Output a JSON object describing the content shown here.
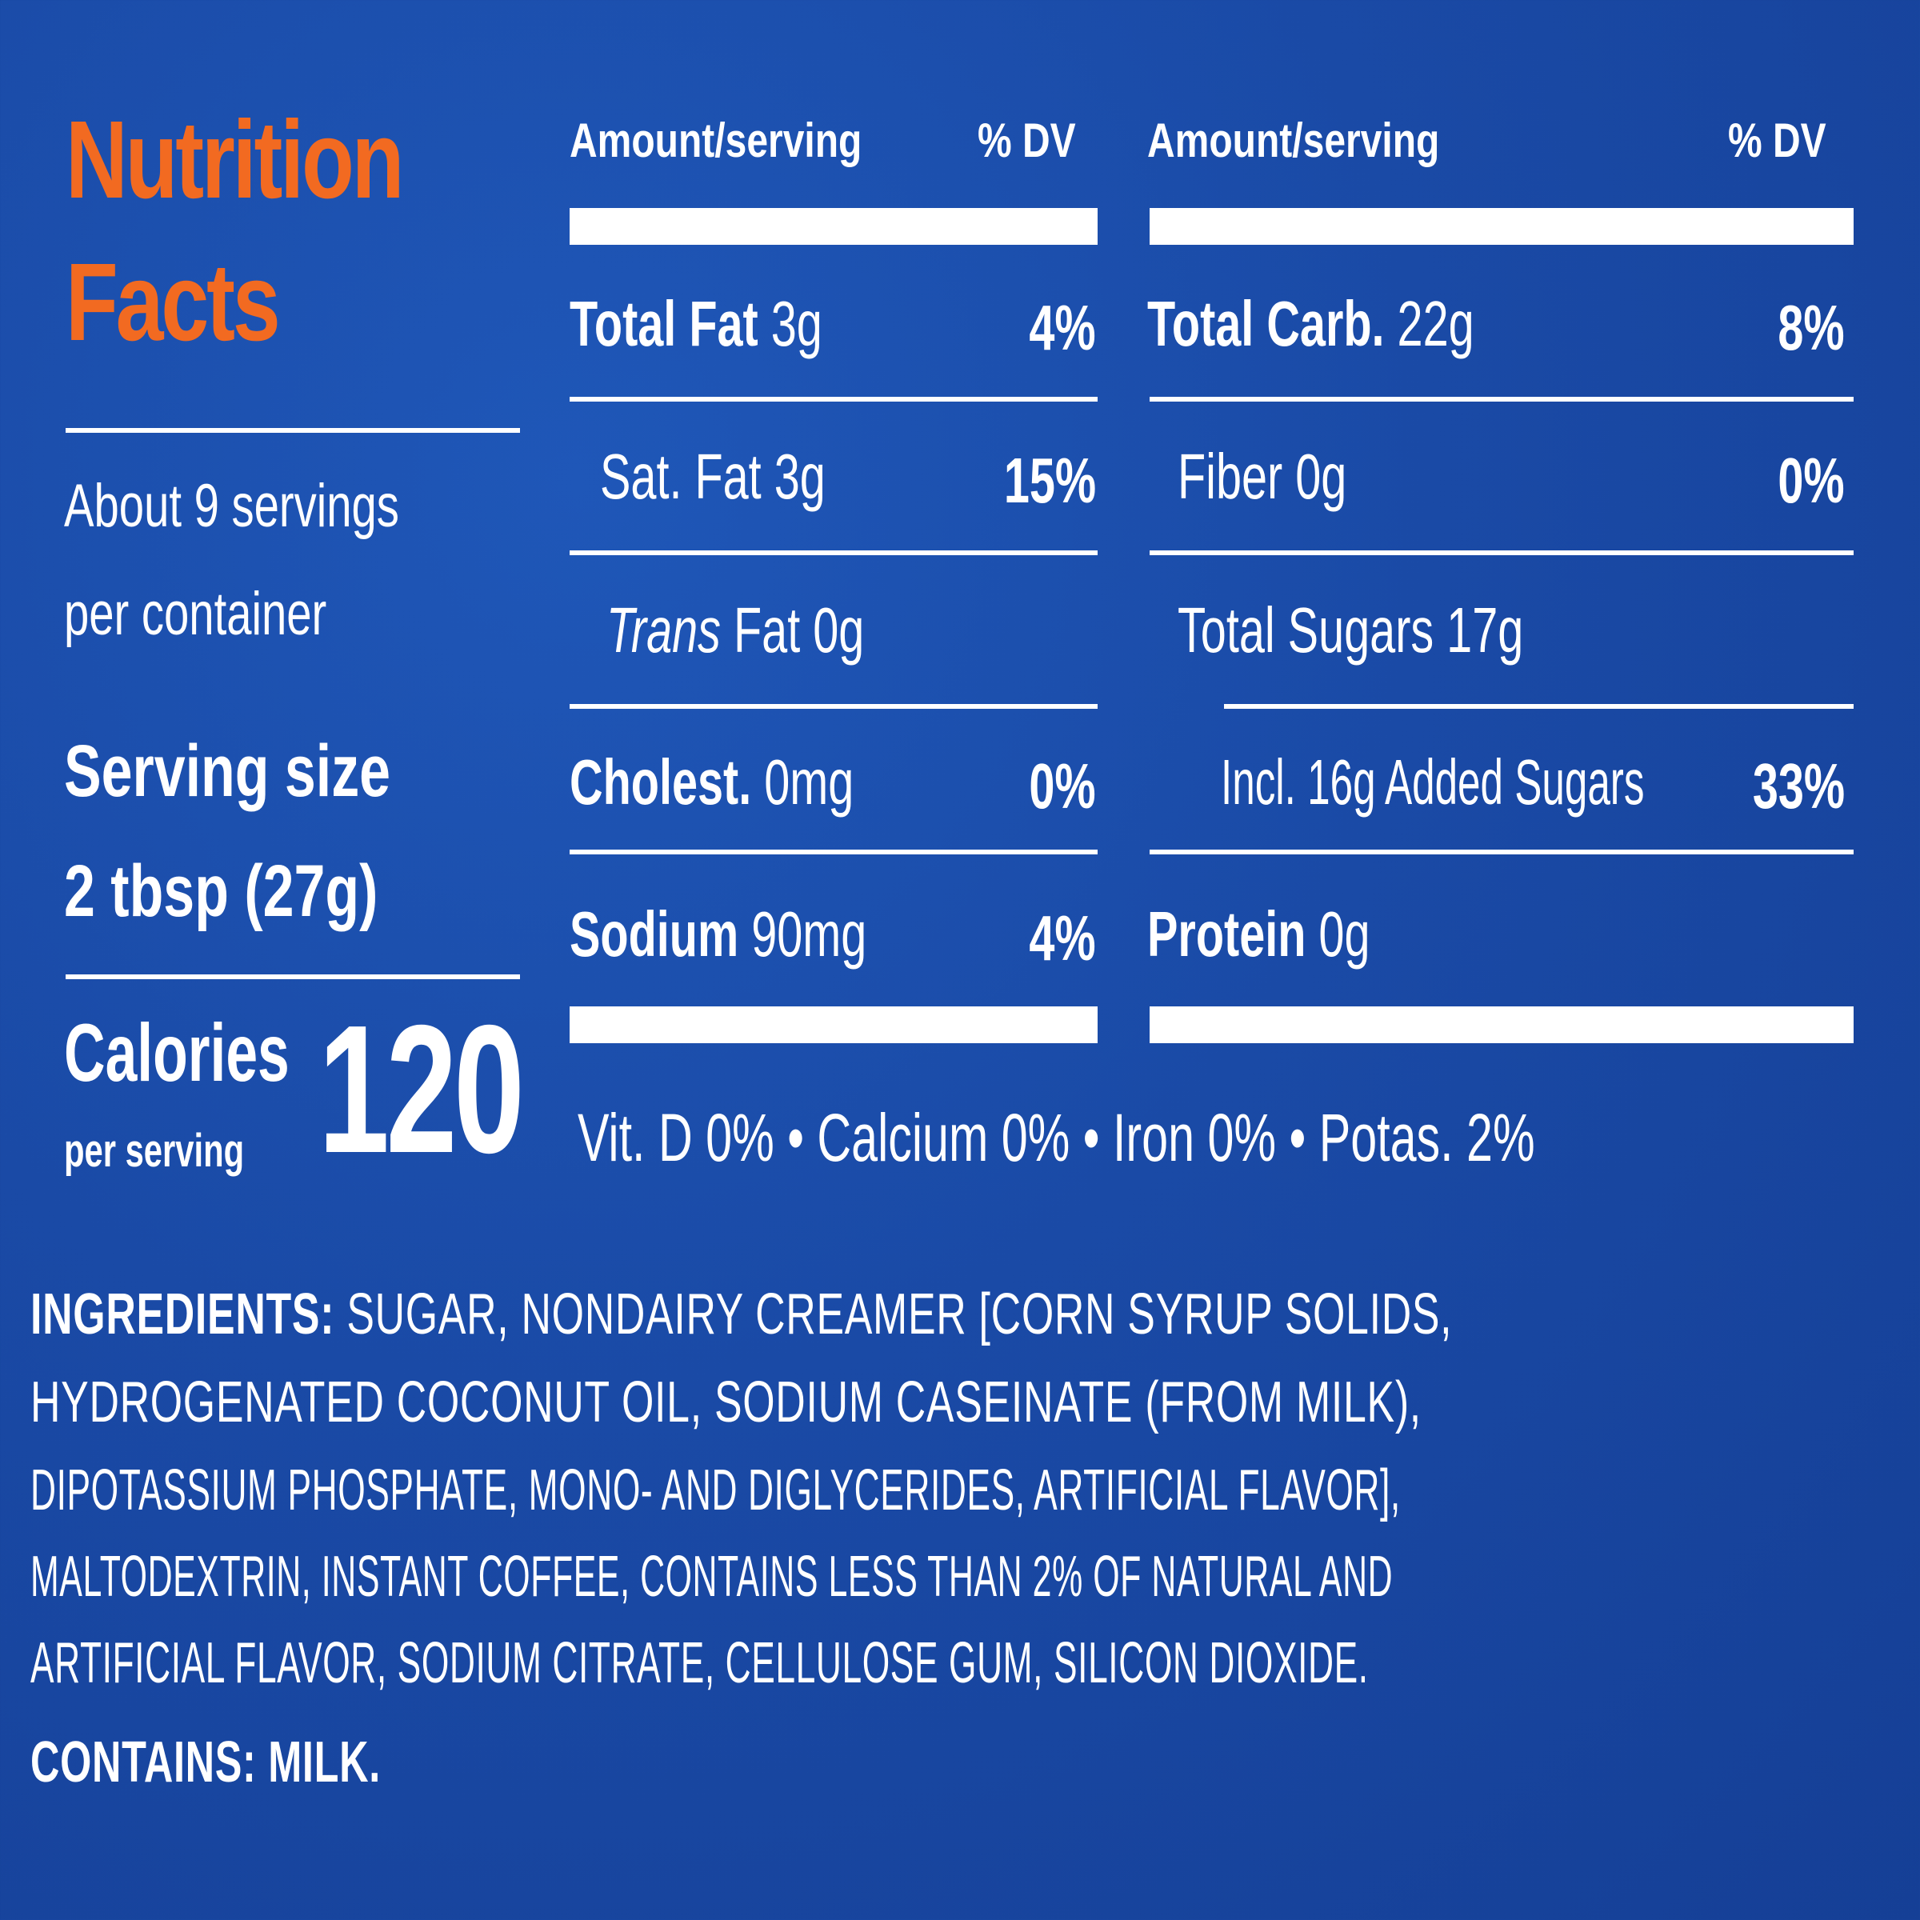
{
  "colors": {
    "background": "#1a4aa6",
    "title": "#f26a21",
    "text": "#ffffff"
  },
  "title": {
    "line1": "Nutrition",
    "line2": "Facts"
  },
  "servings": {
    "line1": "About 9 servings",
    "line2": "per container"
  },
  "serving_size": {
    "label": "Serving size",
    "value": "2 tbsp (27g)"
  },
  "calories": {
    "label": "Calories",
    "sublabel": "per serving",
    "value": "120"
  },
  "left_column": {
    "header_amount": "Amount/serving",
    "header_dv": "% DV",
    "rows": [
      {
        "name": "Total Fat",
        "amount": "3g",
        "dv": "4%"
      },
      {
        "name": "Sat. Fat 3g",
        "dv": "15%"
      },
      {
        "name_italic": "Trans",
        "name_rest": "Fat 0g"
      },
      {
        "name": "Cholest.",
        "amount": "0mg",
        "dv": "0%"
      },
      {
        "name": "Sodium",
        "amount": "90mg",
        "dv": "4%"
      }
    ]
  },
  "right_column": {
    "header_amount": "Amount/serving",
    "header_dv": "% DV",
    "rows": [
      {
        "name": "Total Carb.",
        "amount": "22g",
        "dv": "8%"
      },
      {
        "name": "Fiber 0g",
        "dv": "0%"
      },
      {
        "name": "Total Sugars 17g"
      },
      {
        "name": "Incl. 16g Added Sugars",
        "dv": "33%"
      },
      {
        "name": "Protein",
        "amount": "0g"
      }
    ]
  },
  "vitamins": "Vit. D 0% • Calcium 0% • Iron 0% • Potas. 2%",
  "ingredients": {
    "label": "INGREDIENTS:",
    "line1": "SUGAR, NONDAIRY CREAMER [CORN SYRUP SOLIDS,",
    "line2": "HYDROGENATED COCONUT OIL, SODIUM CASEINATE (FROM MILK),",
    "line3": "DIPOTASSIUM PHOSPHATE, MONO- AND DIGLYCERIDES, ARTIFICIAL FLAVOR],",
    "line4": "MALTODEXTRIN, INSTANT COFFEE, CONTAINS LESS THAN 2% OF NATURAL AND",
    "line5": "ARTIFICIAL FLAVOR, SODIUM CITRATE, CELLULOSE GUM, SILICON DIOXIDE."
  },
  "contains": "CONTAINS: MILK."
}
